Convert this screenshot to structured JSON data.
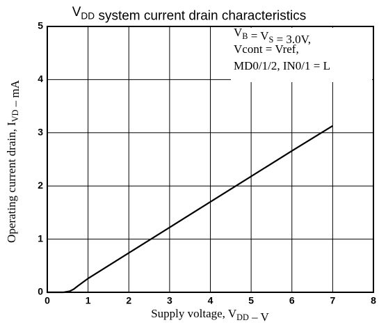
{
  "chart_data": {
    "type": "line",
    "title": [
      "V",
      {
        "sub": "DD"
      },
      " system current drain characteristics"
    ],
    "x_label": [
      "Supply voltage, V",
      {
        "sub": "DD"
      },
      " – V"
    ],
    "y_label": [
      "Operating current drain, I",
      {
        "sub": "VD"
      },
      " – mA"
    ],
    "annotation": [
      [
        "V",
        {
          "sub": "B"
        },
        " = V",
        {
          "sub": "S"
        },
        " = 3.0V,"
      ],
      [
        "Vcont = Vref,"
      ],
      [
        "MD0/1/2, IN0/1 = L"
      ]
    ],
    "series": [
      {
        "color": "#000000",
        "x": [
          0,
          0.4,
          0.55,
          0.65,
          0.75,
          1,
          2,
          3,
          4,
          5,
          6,
          7
        ],
        "values": [
          0,
          0,
          0.02,
          0.06,
          0.12,
          0.26,
          0.74,
          1.22,
          1.7,
          2.18,
          2.66,
          3.13
        ]
      }
    ],
    "xlim": [
      0,
      8
    ],
    "xticks": [
      0,
      1,
      2,
      3,
      4,
      5,
      6,
      7,
      8
    ],
    "ylim": [
      0,
      5
    ],
    "yticks": [
      0,
      1,
      2,
      3,
      4,
      5
    ],
    "grid": true
  }
}
